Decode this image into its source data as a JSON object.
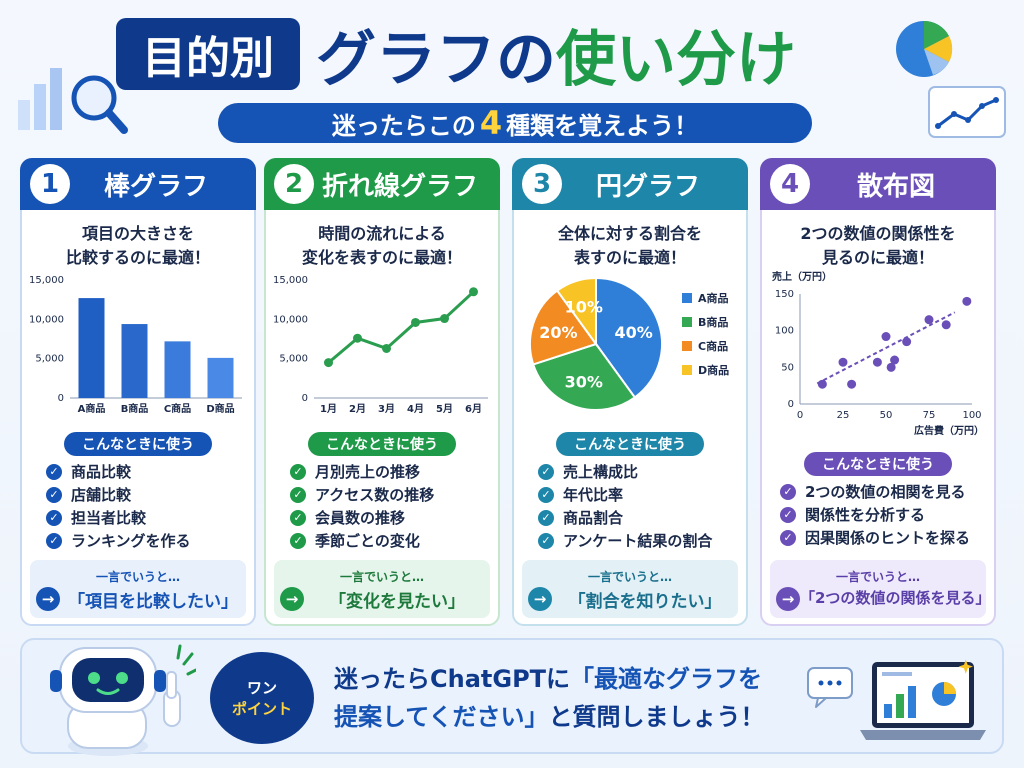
{
  "header": {
    "tag": "目的別",
    "title_part1": "グラフ",
    "title_part2": "の",
    "title_part3": "使い分け",
    "subtitle_before": "迷ったらこの",
    "subtitle_num": "4",
    "subtitle_after": "種類を覚えよう！"
  },
  "cards": [
    {
      "num": "1",
      "title": "棒グラフ",
      "desc1": "項目の大きさを",
      "desc2": "比較するのに最適！",
      "use_label": "こんなときに使う",
      "uses": [
        "商品比較",
        "店舗比較",
        "担当者比較",
        "ランキングを作る"
      ],
      "summary_top": "一言でいうと…",
      "summary_main": "「項目を比較したい」"
    },
    {
      "num": "2",
      "title": "折れ線グラフ",
      "desc1": "時間の流れによる",
      "desc2": "変化を表すのに最適！",
      "use_label": "こんなときに使う",
      "uses": [
        "月別売上の推移",
        "アクセス数の推移",
        "会員数の推移",
        "季節ごとの変化"
      ],
      "summary_top": "一言でいうと…",
      "summary_main": "「変化を見たい」"
    },
    {
      "num": "3",
      "title": "円グラフ",
      "desc1": "全体に対する割合を",
      "desc2": "表すのに最適！",
      "use_label": "こんなときに使う",
      "uses": [
        "売上構成比",
        "年代比率",
        "商品割合",
        "アンケート結果の割合"
      ],
      "summary_top": "一言でいうと…",
      "summary_main": "「割合を知りたい」"
    },
    {
      "num": "4",
      "title": "散布図",
      "desc1": "2つの数値の関係性を",
      "desc2": "見るのに最適！",
      "use_label": "こんなときに使う",
      "uses": [
        "2つの数値の相関を見る",
        "関係性を分析する",
        "因果関係のヒントを探る"
      ],
      "summary_top": "一言でいうと…",
      "summary_main": "「2つの数値の関係を見る」"
    }
  ],
  "chart_data": [
    {
      "type": "bar",
      "categories": [
        "A商品",
        "B商品",
        "C商品",
        "D商品"
      ],
      "values": [
        12700,
        9400,
        7200,
        5100
      ],
      "ylim": [
        0,
        15000
      ],
      "yticks": [
        "0",
        "5,000",
        "10,000",
        "15,000"
      ],
      "color": "#2563c9"
    },
    {
      "type": "line",
      "categories": [
        "1月",
        "2月",
        "3月",
        "4月",
        "5月",
        "6月"
      ],
      "values": [
        4500,
        7600,
        6300,
        9600,
        10100,
        13500
      ],
      "ylim": [
        0,
        15000
      ],
      "yticks": [
        "0",
        "5,000",
        "10,000",
        "15,000"
      ],
      "color": "#2a9d4f"
    },
    {
      "type": "pie",
      "slices": [
        {
          "label": "A商品",
          "value": 40,
          "text": "40%",
          "color": "#2f7fd8"
        },
        {
          "label": "B商品",
          "value": 30,
          "text": "30%",
          "color": "#34a853"
        },
        {
          "label": "C商品",
          "value": 20,
          "text": "20%",
          "color": "#f28b22"
        },
        {
          "label": "D商品",
          "value": 10,
          "text": "10%",
          "color": "#f7c325"
        }
      ]
    },
    {
      "type": "scatter",
      "ylabel": "売上（万円）",
      "xlabel": "広告費（万円）",
      "xlim": [
        0,
        100
      ],
      "ylim": [
        0,
        150
      ],
      "xticks": [
        "0",
        "25",
        "50",
        "75",
        "100"
      ],
      "yticks": [
        "0",
        "50",
        "100",
        "150"
      ],
      "points": [
        [
          13,
          27
        ],
        [
          25,
          57
        ],
        [
          30,
          27
        ],
        [
          45,
          57
        ],
        [
          50,
          92
        ],
        [
          53,
          50
        ],
        [
          55,
          60
        ],
        [
          62,
          85
        ],
        [
          75,
          115
        ],
        [
          85,
          108
        ],
        [
          97,
          140
        ]
      ],
      "color": "#6a4fb8"
    }
  ],
  "bottom": {
    "bubble1": "ワン",
    "bubble2": "ポイント",
    "line1_a": "迷ったらChatGPTに",
    "line1_b": "「最適なグラフを",
    "line2_a": "提案してください」",
    "line2_b": "と質問しましょう！",
    "chat_dots": "..."
  }
}
